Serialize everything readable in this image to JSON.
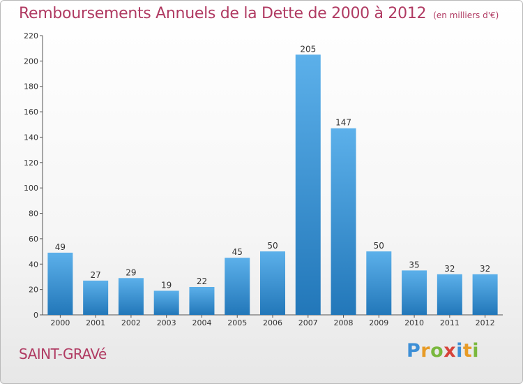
{
  "title": "Remboursements Annuels de la Dette de 2000 à 2012",
  "title_unit": "(en milliers d'€)",
  "place_name": "SAINT-GRAVé",
  "brand": {
    "letters": [
      "P",
      "r",
      "o",
      "x",
      "i",
      "t",
      "i"
    ],
    "colors": [
      "#3d8fd6",
      "#e79b26",
      "#7ab83e",
      "#d6433a",
      "#3d8fd6",
      "#e79b26",
      "#7ab83e"
    ]
  },
  "chart_data": {
    "type": "bar",
    "title": "Remboursements Annuels de la Dette de 2000 à 2012",
    "categories": [
      "2000",
      "2001",
      "2002",
      "2003",
      "2004",
      "2005",
      "2006",
      "2007",
      "2008",
      "2009",
      "2010",
      "2011",
      "2012"
    ],
    "values": [
      49,
      27,
      29,
      19,
      22,
      45,
      50,
      205,
      147,
      50,
      35,
      32,
      32
    ],
    "ylim": [
      0,
      220
    ],
    "yticks": [
      0,
      20,
      40,
      60,
      80,
      100,
      120,
      140,
      160,
      180,
      200,
      220
    ],
    "grid": false,
    "bar_color_top": "#5cb0ea",
    "bar_color_bottom": "#2277b9"
  }
}
